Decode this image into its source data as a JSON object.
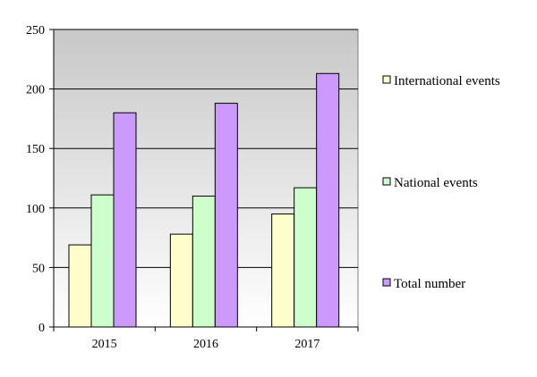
{
  "chart_data": {
    "type": "bar",
    "categories": [
      "2015",
      "2016",
      "2017"
    ],
    "series": [
      {
        "name": "International events",
        "values": [
          69,
          78,
          95
        ],
        "color": "#ffffcc"
      },
      {
        "name": "National events",
        "values": [
          111,
          110,
          117
        ],
        "color": "#ccffcc"
      },
      {
        "name": "Total number",
        "values": [
          180,
          188,
          213
        ],
        "color": "#cc99ff"
      }
    ],
    "title": "",
    "xlabel": "",
    "ylabel": "",
    "ylim": [
      0,
      250
    ],
    "yticks": [
      0,
      50,
      100,
      150,
      200,
      250
    ],
    "grid": true,
    "legend_position": "right",
    "plot_background": "gradient gray to white"
  }
}
